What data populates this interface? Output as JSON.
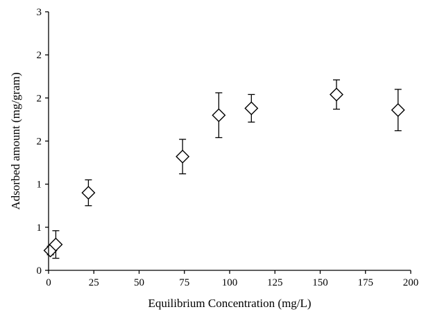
{
  "chart_data": {
    "type": "scatter",
    "xlabel": "Equilibrium Concentration (mg/L)",
    "ylabel": "Adsorbed amount (mg/gram)",
    "xlim": [
      0,
      200
    ],
    "ylim": [
      0,
      3
    ],
    "xticks": [
      0,
      25,
      50,
      75,
      100,
      125,
      150,
      175,
      200
    ],
    "ytick_values": [
      0,
      0.5,
      1,
      1.5,
      2,
      2.5,
      3
    ],
    "ytick_labels": [
      "0",
      "1",
      "1",
      "2",
      "2",
      "2",
      "3"
    ],
    "grid": false,
    "marker": "open-diamond",
    "series": [
      {
        "points": [
          {
            "x": 1,
            "y": 0.23,
            "err": 0.05
          },
          {
            "x": 4,
            "y": 0.3,
            "err": 0.16
          },
          {
            "x": 22,
            "y": 0.9,
            "err": 0.15
          },
          {
            "x": 74,
            "y": 1.32,
            "err": 0.2
          },
          {
            "x": 94,
            "y": 1.8,
            "err": 0.26
          },
          {
            "x": 112,
            "y": 1.88,
            "err": 0.16
          },
          {
            "x": 159,
            "y": 2.04,
            "err": 0.17
          },
          {
            "x": 193,
            "y": 1.86,
            "err": 0.24
          }
        ]
      }
    ]
  }
}
